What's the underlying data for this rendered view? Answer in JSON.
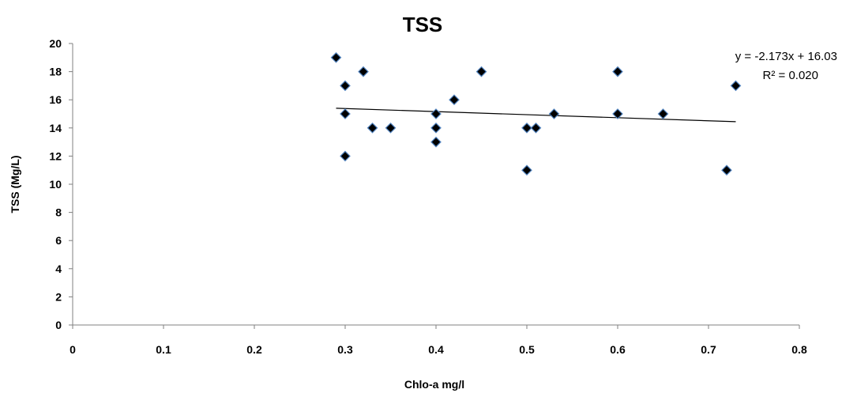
{
  "chart_data": {
    "type": "scatter",
    "title": "TSS",
    "xlabel": "Chlo-a mg/l",
    "ylabel": "TSS (Mg/L)",
    "xlim": [
      0,
      0.8
    ],
    "ylim": [
      0,
      20
    ],
    "x_ticks": [
      "0",
      "0.1",
      "0.2",
      "0.3",
      "0.4",
      "0.5",
      "0.6",
      "0.7",
      "0.8"
    ],
    "y_ticks": [
      "0",
      "2",
      "4",
      "6",
      "8",
      "10",
      "12",
      "14",
      "16",
      "18",
      "20"
    ],
    "grid": false,
    "legend": "none",
    "marker_fill": "#000000",
    "marker_edge": "#4f81bd",
    "trend_color": "#000000",
    "points": [
      {
        "x": 0.29,
        "y": 19
      },
      {
        "x": 0.3,
        "y": 17
      },
      {
        "x": 0.32,
        "y": 18
      },
      {
        "x": 0.3,
        "y": 15
      },
      {
        "x": 0.3,
        "y": 12
      },
      {
        "x": 0.33,
        "y": 14
      },
      {
        "x": 0.35,
        "y": 14
      },
      {
        "x": 0.4,
        "y": 15
      },
      {
        "x": 0.4,
        "y": 14
      },
      {
        "x": 0.4,
        "y": 13
      },
      {
        "x": 0.42,
        "y": 16
      },
      {
        "x": 0.45,
        "y": 18
      },
      {
        "x": 0.5,
        "y": 14
      },
      {
        "x": 0.51,
        "y": 14
      },
      {
        "x": 0.5,
        "y": 11
      },
      {
        "x": 0.53,
        "y": 15
      },
      {
        "x": 0.6,
        "y": 18
      },
      {
        "x": 0.6,
        "y": 15
      },
      {
        "x": 0.65,
        "y": 15
      },
      {
        "x": 0.72,
        "y": 11
      },
      {
        "x": 0.73,
        "y": 17
      }
    ],
    "trendline": {
      "type": "linear",
      "slope": -2.173,
      "intercept": 16.03,
      "x_range": [
        0.29,
        0.73
      ],
      "equation_label": "y = -2.173x + 16.03",
      "r2_label": "R² = 0.020"
    }
  }
}
